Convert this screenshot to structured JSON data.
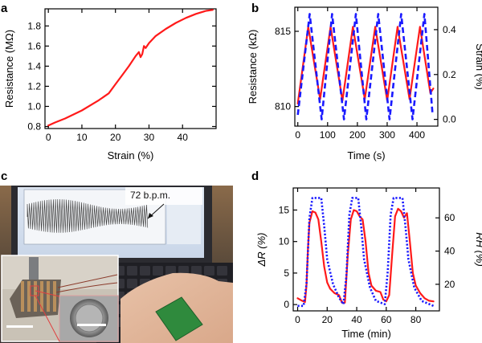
{
  "figure": {
    "panel_c": {
      "label": "c",
      "annotation": "72 b.p.m."
    }
  },
  "chart_data": [
    {
      "panel": "a",
      "type": "line",
      "title": "",
      "xlabel": "Strain (%)",
      "ylabel": "Resistance (MΩ)",
      "xlim": [
        -1,
        50
      ],
      "ylim": [
        0.78,
        1.97
      ],
      "xticks": [
        0,
        10,
        20,
        30,
        40
      ],
      "yticks": [
        0.8,
        1.0,
        1.2,
        1.4,
        1.6,
        1.8
      ],
      "ytick_labels": [
        "0.8",
        "1.0",
        "1.2",
        "1.4",
        "1.6",
        "1.8"
      ],
      "series": [
        {
          "name": "Resistance",
          "color": "#ff1a1a",
          "x": [
            0,
            2,
            5,
            10,
            15,
            18,
            20,
            22,
            24,
            26,
            27,
            27.5,
            28,
            28.5,
            29,
            30,
            32,
            35,
            38,
            41,
            44,
            47,
            49
          ],
          "y": [
            0.81,
            0.84,
            0.88,
            0.96,
            1.06,
            1.13,
            1.22,
            1.31,
            1.4,
            1.5,
            1.54,
            1.49,
            1.52,
            1.6,
            1.58,
            1.63,
            1.7,
            1.77,
            1.83,
            1.88,
            1.92,
            1.95,
            1.96
          ]
        }
      ]
    },
    {
      "panel": "b",
      "type": "line",
      "title": "",
      "xlabel": "Time (s)",
      "ylabel": "Resistance (kΩ)",
      "ylabel_right": "Strain (%)",
      "xlim": [
        -10,
        470
      ],
      "ylim": [
        808.7,
        816.6
      ],
      "ylim_right": [
        -0.03,
        0.5
      ],
      "xticks": [
        0,
        100,
        200,
        300,
        400
      ],
      "yticks": [
        810,
        815
      ],
      "yticks_right": [
        0.0,
        0.2,
        0.4
      ],
      "ytick_labels_right": [
        "0.0",
        "0.2",
        "0.4"
      ],
      "series": [
        {
          "name": "Resistance",
          "axis": "left",
          "color": "#ff1a1a",
          "x": [
            0,
            35,
            75,
            110,
            150,
            185,
            225,
            260,
            300,
            335,
            375,
            410,
            445,
            455
          ],
          "y": [
            810.2,
            815.3,
            810.5,
            815.3,
            810.4,
            815.3,
            810.5,
            815.3,
            810.4,
            815.3,
            810.5,
            815.3,
            810.9,
            811.2
          ]
        },
        {
          "name": "Strain",
          "axis": "right",
          "color": "#1a1aff",
          "dashed": true,
          "x": [
            0,
            40,
            80,
            115,
            155,
            195,
            230,
            270,
            308,
            347,
            385,
            425,
            452
          ],
          "y": [
            0.02,
            0.47,
            0.0,
            0.47,
            0.0,
            0.47,
            0.0,
            0.47,
            0.0,
            0.47,
            0.0,
            0.47,
            0.03
          ]
        }
      ]
    },
    {
      "panel": "d",
      "type": "line",
      "title": "",
      "xlabel": "Time (min)",
      "ylabel": "ΔR (%)",
      "ylabel_right": "RH (%)",
      "xlim": [
        -3,
        96
      ],
      "ylim": [
        -1,
        18.5
      ],
      "ylim_right": [
        4,
        78
      ],
      "xticks": [
        0,
        20,
        40,
        60,
        80
      ],
      "yticks": [
        0,
        5,
        10,
        15
      ],
      "yticks_right": [
        20,
        40,
        60
      ],
      "series": [
        {
          "name": "ΔR",
          "axis": "left",
          "color": "#ff1a1a",
          "x": [
            0,
            3,
            5,
            6,
            7,
            8,
            10,
            12,
            14,
            16,
            18,
            20,
            22,
            25,
            28,
            30,
            32,
            34,
            36,
            38,
            40,
            42,
            44,
            46,
            48,
            50,
            53,
            56,
            58,
            60,
            62,
            64,
            66,
            68,
            70,
            72,
            74,
            76,
            78,
            80,
            83,
            86,
            89,
            92
          ],
          "y": [
            1.0,
            0.6,
            0.4,
            3.0,
            9.0,
            13.0,
            14.8,
            14.6,
            13.5,
            10.0,
            6.0,
            3.5,
            2.5,
            1.8,
            1.5,
            0.3,
            0.3,
            8.0,
            13.5,
            15.0,
            14.8,
            14.0,
            13.5,
            10.0,
            5.0,
            3.0,
            2.2,
            2.0,
            0.8,
            0.5,
            1.5,
            8.0,
            14.0,
            15.2,
            14.8,
            13.8,
            14.5,
            10.0,
            5.0,
            3.0,
            1.8,
            1.0,
            0.6,
            0.5
          ]
        },
        {
          "name": "RH",
          "axis": "right",
          "color": "#1a1aff",
          "dotted": true,
          "x": [
            0,
            4,
            6,
            8,
            10,
            16,
            18,
            20,
            24,
            28,
            31,
            33,
            35,
            37,
            41,
            43,
            45,
            49,
            53,
            59,
            61,
            63,
            65,
            71,
            73,
            75,
            79,
            84,
            92
          ],
          "y": [
            7,
            7,
            20,
            60,
            72,
            72,
            55,
            35,
            20,
            12,
            8,
            25,
            62,
            72,
            72,
            55,
            35,
            18,
            10,
            8,
            28,
            62,
            72,
            72,
            55,
            35,
            18,
            10,
            7
          ]
        }
      ]
    }
  ]
}
